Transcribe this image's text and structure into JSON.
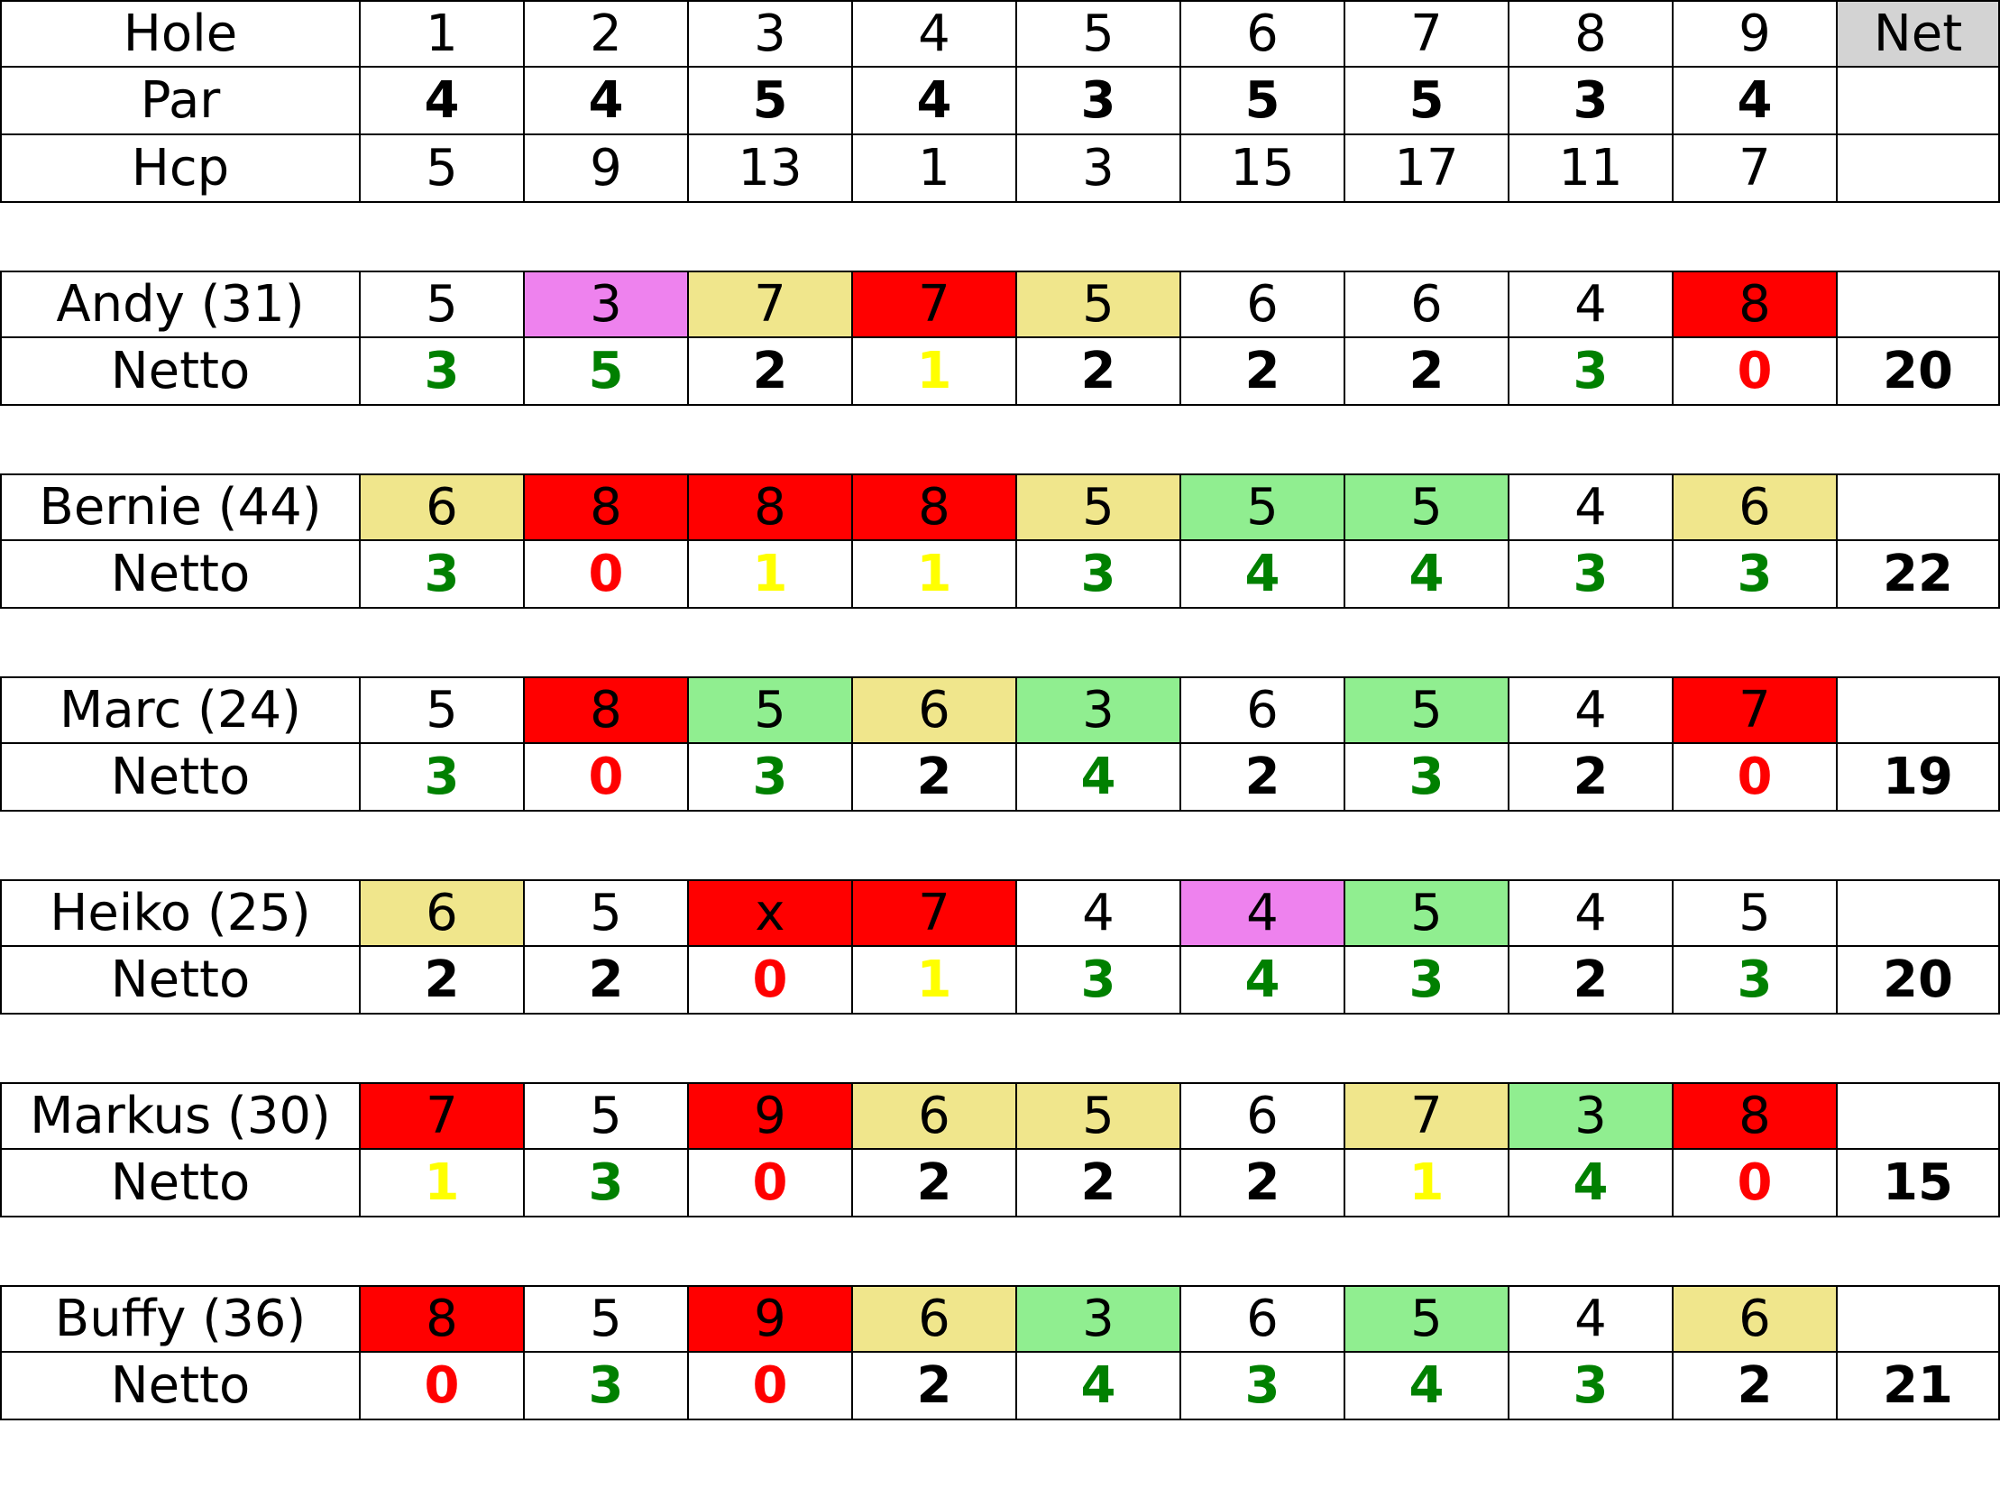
{
  "header": {
    "rows": [
      {
        "label": "Hole",
        "values": [
          "1",
          "2",
          "3",
          "4",
          "5",
          "6",
          "7",
          "8",
          "9"
        ],
        "net": "Net",
        "bold": false
      },
      {
        "label": "Par",
        "values": [
          "4",
          "4",
          "5",
          "4",
          "3",
          "5",
          "5",
          "3",
          "4"
        ],
        "net": "",
        "bold": true
      },
      {
        "label": "Hcp",
        "values": [
          "5",
          "9",
          "13",
          "1",
          "3",
          "15",
          "17",
          "11",
          "7"
        ],
        "net": "",
        "bold": false
      }
    ],
    "net_header_bg": "#d3d3d3"
  },
  "colors": {
    "red": "#ff0000",
    "khaki": "#f0e68c",
    "lightgreen": "#90ee90",
    "violet": "#ee82ee",
    "white": "#ffffff",
    "text_green": "#008000",
    "text_red": "#ff0000",
    "text_yellow": "#ffff00",
    "text_black": "#000000"
  },
  "players": [
    {
      "name": "Andy (31)",
      "strokes": [
        "5",
        "3",
        "7",
        "7",
        "5",
        "6",
        "6",
        "4",
        "8"
      ],
      "stroke_bg": [
        "white",
        "violet",
        "khaki",
        "red",
        "khaki",
        "white",
        "white",
        "white",
        "red"
      ],
      "netto_label": "Netto",
      "netto": [
        "3",
        "5",
        "2",
        "1",
        "2",
        "2",
        "2",
        "3",
        "0"
      ],
      "netto_color": [
        "text_green",
        "text_green",
        "text_black",
        "text_yellow",
        "text_black",
        "text_black",
        "text_black",
        "text_green",
        "text_red"
      ],
      "net_total": "20"
    },
    {
      "name": "Bernie (44)",
      "strokes": [
        "6",
        "8",
        "8",
        "8",
        "5",
        "5",
        "5",
        "4",
        "6"
      ],
      "stroke_bg": [
        "khaki",
        "red",
        "red",
        "red",
        "khaki",
        "lightgreen",
        "lightgreen",
        "white",
        "khaki"
      ],
      "netto_label": "Netto",
      "netto": [
        "3",
        "0",
        "1",
        "1",
        "3",
        "4",
        "4",
        "3",
        "3"
      ],
      "netto_color": [
        "text_green",
        "text_red",
        "text_yellow",
        "text_yellow",
        "text_green",
        "text_green",
        "text_green",
        "text_green",
        "text_green"
      ],
      "net_total": "22"
    },
    {
      "name": "Marc (24)",
      "strokes": [
        "5",
        "8",
        "5",
        "6",
        "3",
        "6",
        "5",
        "4",
        "7"
      ],
      "stroke_bg": [
        "white",
        "red",
        "lightgreen",
        "khaki",
        "lightgreen",
        "white",
        "lightgreen",
        "white",
        "red"
      ],
      "netto_label": "Netto",
      "netto": [
        "3",
        "0",
        "3",
        "2",
        "4",
        "2",
        "3",
        "2",
        "0"
      ],
      "netto_color": [
        "text_green",
        "text_red",
        "text_green",
        "text_black",
        "text_green",
        "text_black",
        "text_green",
        "text_black",
        "text_red"
      ],
      "net_total": "19"
    },
    {
      "name": "Heiko (25)",
      "strokes": [
        "6",
        "5",
        "x",
        "7",
        "4",
        "4",
        "5",
        "4",
        "5"
      ],
      "stroke_bg": [
        "khaki",
        "white",
        "red",
        "red",
        "white",
        "violet",
        "lightgreen",
        "white",
        "white"
      ],
      "netto_label": "Netto",
      "netto": [
        "2",
        "2",
        "0",
        "1",
        "3",
        "4",
        "3",
        "2",
        "3"
      ],
      "netto_color": [
        "text_black",
        "text_black",
        "text_red",
        "text_yellow",
        "text_green",
        "text_green",
        "text_green",
        "text_black",
        "text_green"
      ],
      "net_total": "20"
    },
    {
      "name": "Markus (30)",
      "strokes": [
        "7",
        "5",
        "9",
        "6",
        "5",
        "6",
        "7",
        "3",
        "8"
      ],
      "stroke_bg": [
        "red",
        "white",
        "red",
        "khaki",
        "khaki",
        "white",
        "khaki",
        "lightgreen",
        "red"
      ],
      "netto_label": "Netto",
      "netto": [
        "1",
        "3",
        "0",
        "2",
        "2",
        "2",
        "1",
        "4",
        "0"
      ],
      "netto_color": [
        "text_yellow",
        "text_green",
        "text_red",
        "text_black",
        "text_black",
        "text_black",
        "text_yellow",
        "text_green",
        "text_red"
      ],
      "net_total": "15"
    },
    {
      "name": "Buffy (36)",
      "strokes": [
        "8",
        "5",
        "9",
        "6",
        "3",
        "6",
        "5",
        "4",
        "6"
      ],
      "stroke_bg": [
        "red",
        "white",
        "red",
        "khaki",
        "lightgreen",
        "white",
        "lightgreen",
        "white",
        "khaki"
      ],
      "netto_label": "Netto",
      "netto": [
        "0",
        "3",
        "0",
        "2",
        "4",
        "3",
        "4",
        "3",
        "2"
      ],
      "netto_color": [
        "text_red",
        "text_green",
        "text_red",
        "text_black",
        "text_green",
        "text_green",
        "text_green",
        "text_green",
        "text_black"
      ],
      "net_total": "21"
    }
  ]
}
